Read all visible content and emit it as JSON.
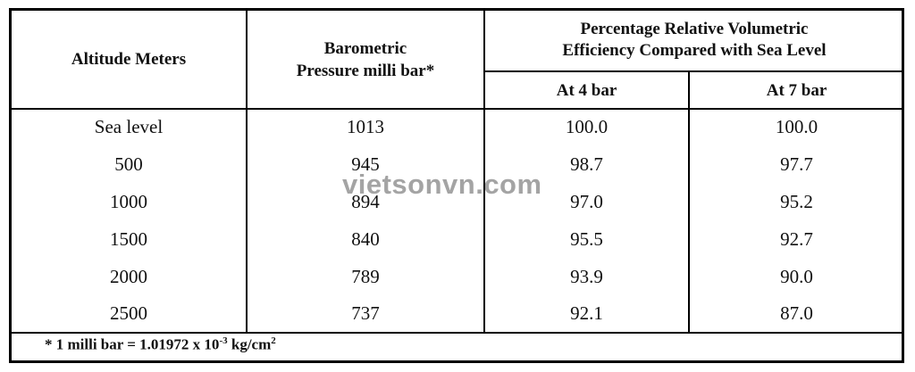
{
  "table": {
    "headers": {
      "altitude": "Altitude Meters",
      "pressure_line1": "Barometric",
      "pressure_line2": "Pressure milli bar*",
      "efficiency_line1": "Percentage Relative Volumetric",
      "efficiency_line2": "Efficiency Compared with Sea Level",
      "at4": "At 4 bar",
      "at7": "At 7 bar"
    },
    "rows": [
      {
        "altitude": "Sea level",
        "pressure": "1013",
        "at4": "100.0",
        "at7": "100.0"
      },
      {
        "altitude": "500",
        "pressure": "945",
        "at4": "98.7",
        "at7": "97.7"
      },
      {
        "altitude": "1000",
        "pressure": "894",
        "at4": "97.0",
        "at7": "95.2"
      },
      {
        "altitude": "1500",
        "pressure": "840",
        "at4": "95.5",
        "at7": "92.7"
      },
      {
        "altitude": "2000",
        "pressure": "789",
        "at4": "93.9",
        "at7": "90.0"
      },
      {
        "altitude": "2500",
        "pressure": "737",
        "at4": "92.1",
        "at7": "87.0"
      }
    ],
    "footnote": {
      "prefix": "* 1 milli bar = 1.01972 x 10",
      "exponent": "-3",
      "unit": " kg/cm",
      "unit_exponent": "2"
    }
  },
  "watermark": "vietsonvn.com"
}
